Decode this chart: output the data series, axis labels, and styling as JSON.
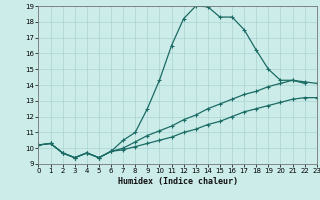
{
  "xlabel": "Humidex (Indice chaleur)",
  "xlim": [
    0,
    23
  ],
  "ylim": [
    9,
    19
  ],
  "xticks": [
    0,
    1,
    2,
    3,
    4,
    5,
    6,
    7,
    8,
    9,
    10,
    11,
    12,
    13,
    14,
    15,
    16,
    17,
    18,
    19,
    20,
    21,
    22,
    23
  ],
  "yticks": [
    9,
    10,
    11,
    12,
    13,
    14,
    15,
    16,
    17,
    18,
    19
  ],
  "background_color": "#ccecea",
  "grid_color": "#aad4d0",
  "line_color": "#1a6b63",
  "line1_x": [
    0,
    1,
    2,
    3,
    4,
    5,
    6,
    7,
    8,
    9,
    10,
    11,
    12,
    13,
    14,
    15,
    16,
    17,
    18,
    19,
    20,
    21,
    22,
    23
  ],
  "line1_y": [
    10.2,
    10.3,
    9.7,
    9.4,
    9.7,
    9.4,
    9.8,
    10.5,
    11.0,
    12.5,
    14.3,
    16.5,
    18.2,
    19.0,
    18.95,
    18.3,
    18.3,
    17.5,
    16.2,
    15.0,
    14.3,
    14.3,
    14.1,
    null
  ],
  "line2_x": [
    0,
    1,
    2,
    3,
    4,
    5,
    6,
    7,
    8,
    9,
    10,
    11,
    12,
    13,
    14,
    15,
    16,
    17,
    18,
    19,
    20,
    21,
    22,
    23
  ],
  "line2_y": [
    10.2,
    10.3,
    9.7,
    9.4,
    9.7,
    9.4,
    9.8,
    10.0,
    10.4,
    10.8,
    11.1,
    11.4,
    11.8,
    12.1,
    12.5,
    12.8,
    13.1,
    13.4,
    13.6,
    13.9,
    14.1,
    14.3,
    14.2,
    14.1
  ],
  "line3_x": [
    0,
    1,
    2,
    3,
    4,
    5,
    6,
    7,
    8,
    9,
    10,
    11,
    12,
    13,
    14,
    15,
    16,
    17,
    18,
    19,
    20,
    21,
    22,
    23
  ],
  "line3_y": [
    10.2,
    10.3,
    9.7,
    9.4,
    9.7,
    9.4,
    9.8,
    9.9,
    10.1,
    10.3,
    10.5,
    10.7,
    11.0,
    11.2,
    11.5,
    11.7,
    12.0,
    12.3,
    12.5,
    12.7,
    12.9,
    13.1,
    13.2,
    13.2
  ]
}
